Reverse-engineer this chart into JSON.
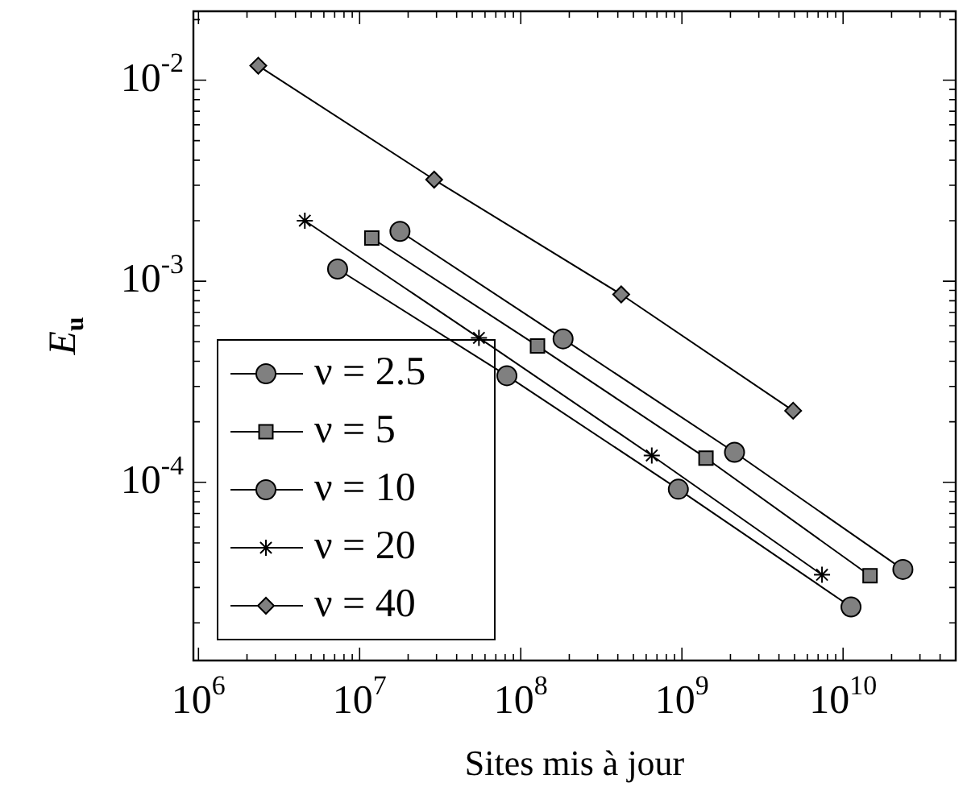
{
  "chart_data": {
    "type": "line",
    "xlabel": "Sites mis à jour",
    "ylabel": "E$_{u}$",
    "log": "xy",
    "grid": false,
    "legend": "bottom left",
    "line_style": "solid",
    "xlim": [
      930000,
      50000000000
    ],
    "ylim": [
      1.3e-05,
      0.022
    ],
    "xticks": [
      {
        "value": 1000000,
        "label": "10$^{6}$"
      },
      {
        "value": 10000000,
        "label": "10$^{7}$"
      },
      {
        "value": 100000000,
        "label": "10$^{8}$"
      },
      {
        "value": 1000000000,
        "label": "10$^{9}$"
      },
      {
        "value": 10000000000,
        "label": "10$^{10}$"
      }
    ],
    "yticks": [
      {
        "value": 0.0001,
        "label": "10$^{-4}$"
      },
      {
        "value": 0.001,
        "label": "10$^{-3}$"
      },
      {
        "value": 0.01,
        "label": "10$^{-2}$"
      }
    ],
    "series": [
      {
        "name": "ν = 2.5",
        "color": "#000000",
        "marker": "circle",
        "x": [
          17800000,
          183000000,
          2120000000,
          23500000000
        ],
        "values": [
          0.00177,
          0.000517,
          0.000141,
          3.69e-05
        ]
      },
      {
        "name": "ν = 5",
        "color": "#000000",
        "marker": "square",
        "x": [
          11900000,
          127000000,
          1410000000,
          14700000000
        ],
        "values": [
          0.00164,
          0.000477,
          0.000132,
          3.43e-05
        ]
      },
      {
        "name": "ν = 10",
        "color": "#000000",
        "marker": "circle",
        "x": [
          7300000,
          82000000,
          950000000,
          11200000000
        ],
        "values": [
          0.00115,
          0.000339,
          9.24e-05,
          2.4e-05
        ]
      },
      {
        "name": "ν = 20",
        "color": "#000000",
        "marker": "cross",
        "x": [
          4570000,
          55000000,
          650000000,
          7400000000
        ],
        "values": [
          0.002,
          0.000523,
          0.000136,
          3.47e-05
        ]
      },
      {
        "name": "ν = 40",
        "color": "#000000",
        "marker": "diamond",
        "x": [
          2350000,
          29000000,
          420000000,
          4900000000
        ],
        "values": [
          0.0118,
          0.0032,
          0.00086,
          0.000227
        ]
      }
    ]
  }
}
